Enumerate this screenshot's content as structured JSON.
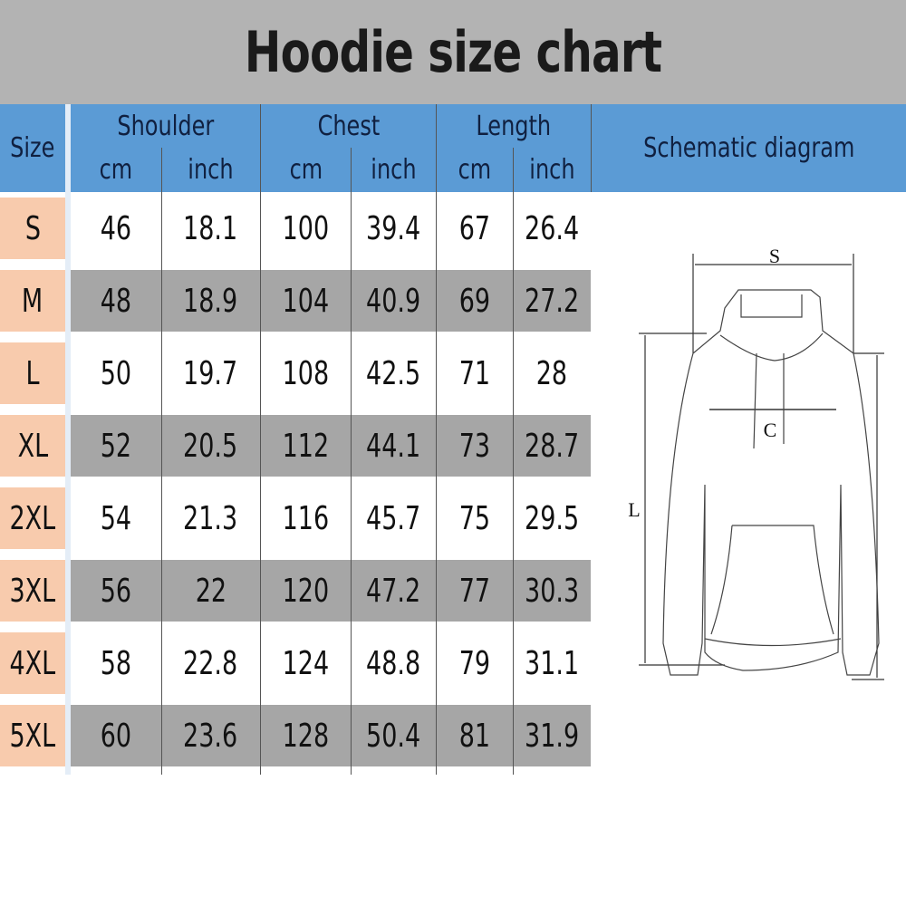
{
  "title": "Hoodie size chart",
  "headers": {
    "size": "Size",
    "shoulder": "Shoulder",
    "chest": "Chest",
    "length": "Length",
    "cm": "cm",
    "inch": "inch",
    "diagram": "Schematic diagram"
  },
  "colors": {
    "header": "#5b9bd5",
    "size_cell": "#f8cbad",
    "row_alt": "#a6a6a6",
    "title_bar": "#b3b3b3"
  },
  "rows": [
    [
      "S",
      "46",
      "18.1",
      "100",
      "39.4",
      "67",
      "26.4"
    ],
    [
      "M",
      "48",
      "18.9",
      "104",
      "40.9",
      "69",
      "27.2"
    ],
    [
      "L",
      "50",
      "19.7",
      "108",
      "42.5",
      "71",
      "28"
    ],
    [
      "XL",
      "52",
      "20.5",
      "112",
      "44.1",
      "73",
      "28.7"
    ],
    [
      "2XL",
      "54",
      "21.3",
      "116",
      "45.7",
      "75",
      "29.5"
    ],
    [
      "3XL",
      "56",
      "22",
      "120",
      "47.2",
      "77",
      "30.3"
    ],
    [
      "4XL",
      "58",
      "22.8",
      "124",
      "48.8",
      "79",
      "31.1"
    ],
    [
      "5XL",
      "60",
      "23.6",
      "128",
      "50.4",
      "81",
      "31.9"
    ]
  ],
  "diagram_labels": {
    "shoulder": "S",
    "chest": "C",
    "length": "L"
  }
}
